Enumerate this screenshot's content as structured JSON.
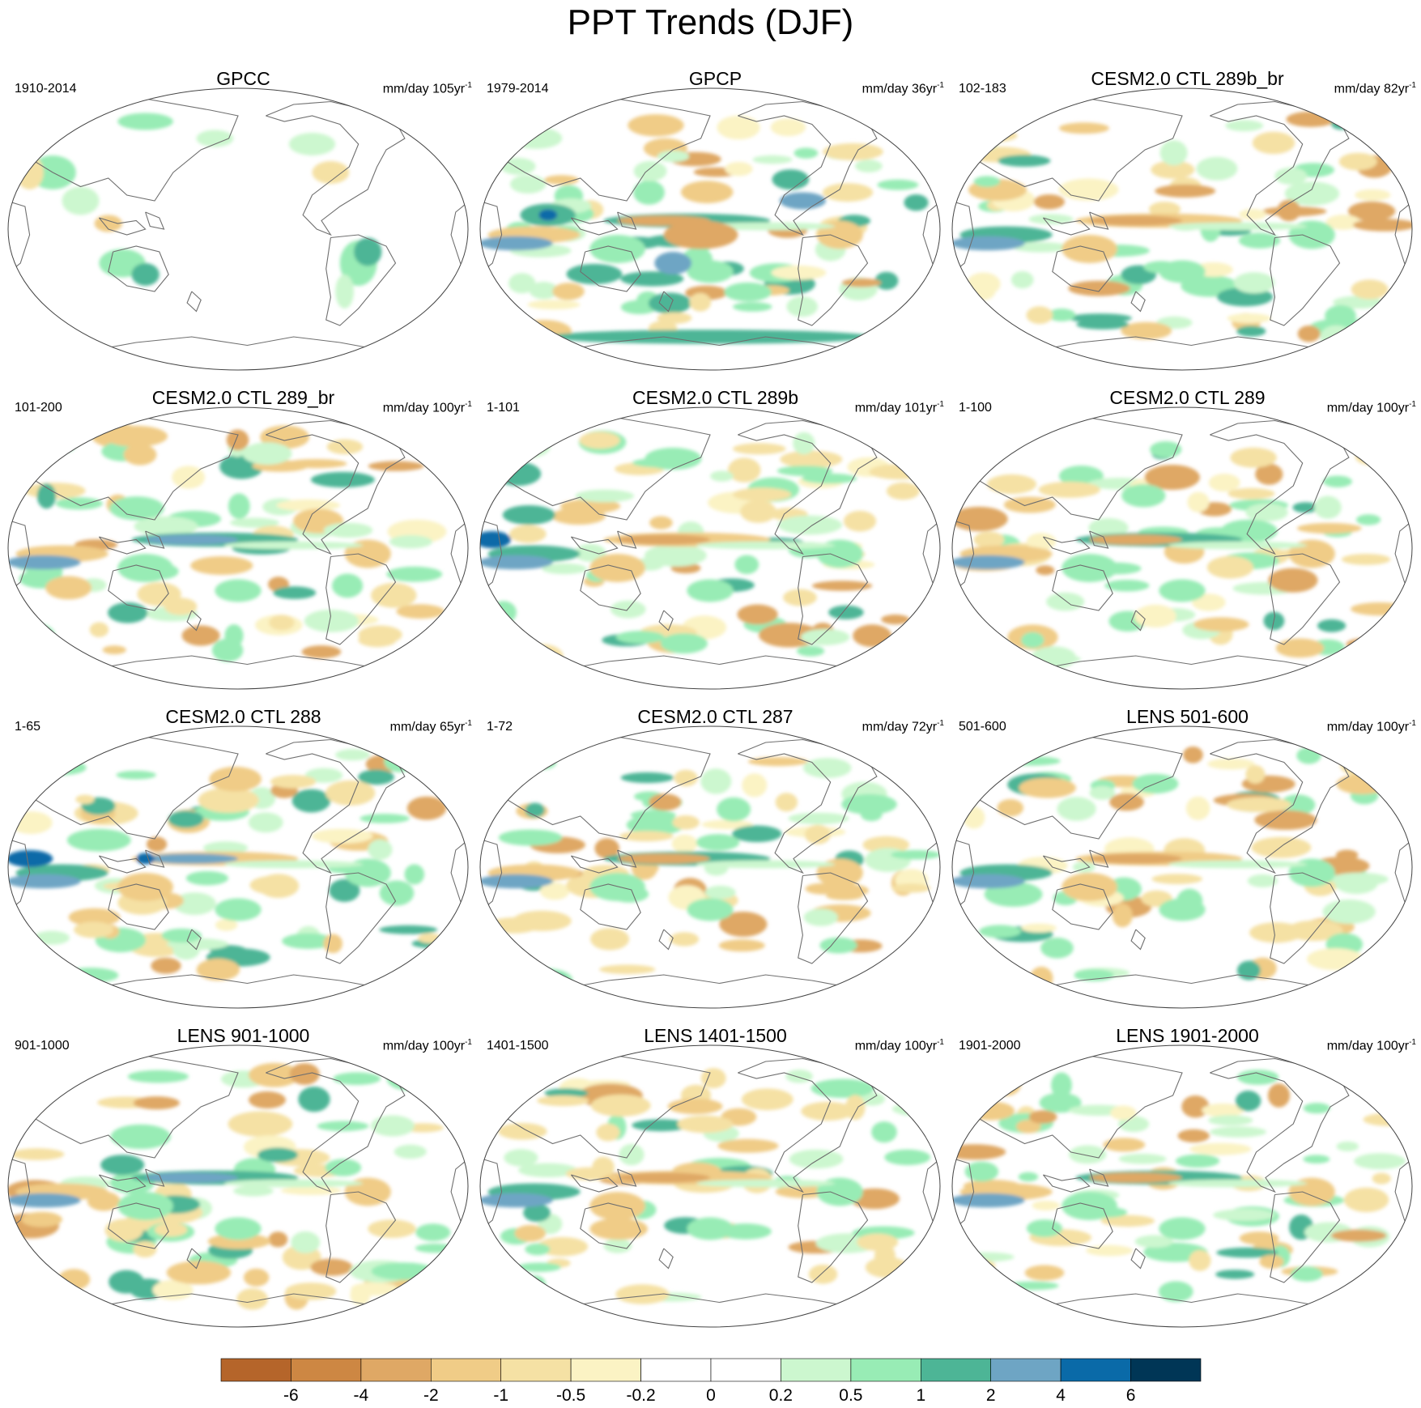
{
  "title": "PPT Trends (DJF)",
  "panels": [
    {
      "title": "GPCC",
      "period": "1910-2014",
      "units": "mm/day 105yr",
      "ocean_masked": true
    },
    {
      "title": "GPCP",
      "period": "1979-2014",
      "units": "mm/day 36yr"
    },
    {
      "title": "CESM2.0 CTL 289b_br",
      "period": "102-183",
      "units": "mm/day 82yr"
    },
    {
      "title": "CESM2.0 CTL 289_br",
      "period": "101-200",
      "units": "mm/day 100yr"
    },
    {
      "title": "CESM2.0 CTL 289b",
      "period": "1-101",
      "units": "mm/day 101yr"
    },
    {
      "title": "CESM2.0 CTL 289",
      "period": "1-100",
      "units": "mm/day 100yr"
    },
    {
      "title": "CESM2.0 CTL 288",
      "period": "1-65",
      "units": "mm/day 65yr"
    },
    {
      "title": "CESM2.0 CTL 287",
      "period": "1-72",
      "units": "mm/day 72yr"
    },
    {
      "title": "LENS 501-600",
      "period": "501-600",
      "units": "mm/day 100yr"
    },
    {
      "title": "LENS 901-1000",
      "period": "901-1000",
      "units": "mm/day 100yr"
    },
    {
      "title": "LENS 1401-1500",
      "period": "1401-1500",
      "units": "mm/day 100yr"
    },
    {
      "title": "LENS 1901-2000",
      "period": "1901-2000",
      "units": "mm/day 100yr"
    }
  ],
  "unit_exponent": "-1",
  "colorbar": {
    "labels": [
      "-6",
      "-4",
      "-2",
      "-1",
      "-0.5",
      "-0.2",
      "0",
      "0.2",
      "0.5",
      "1",
      "2",
      "4",
      "6"
    ],
    "colors": [
      "#b5652a",
      "#cd8743",
      "#dfa865",
      "#f0cc87",
      "#f5e1a4",
      "#fbf3c4",
      "#ffffff",
      "#ffffff",
      "#ccf7cf",
      "#98ecb5",
      "#4db596",
      "#6ea5c4",
      "#0a6aa8",
      "#003656"
    ]
  },
  "colors": {
    "coastline": "#6f6f6f",
    "map_outline": "#444444"
  }
}
